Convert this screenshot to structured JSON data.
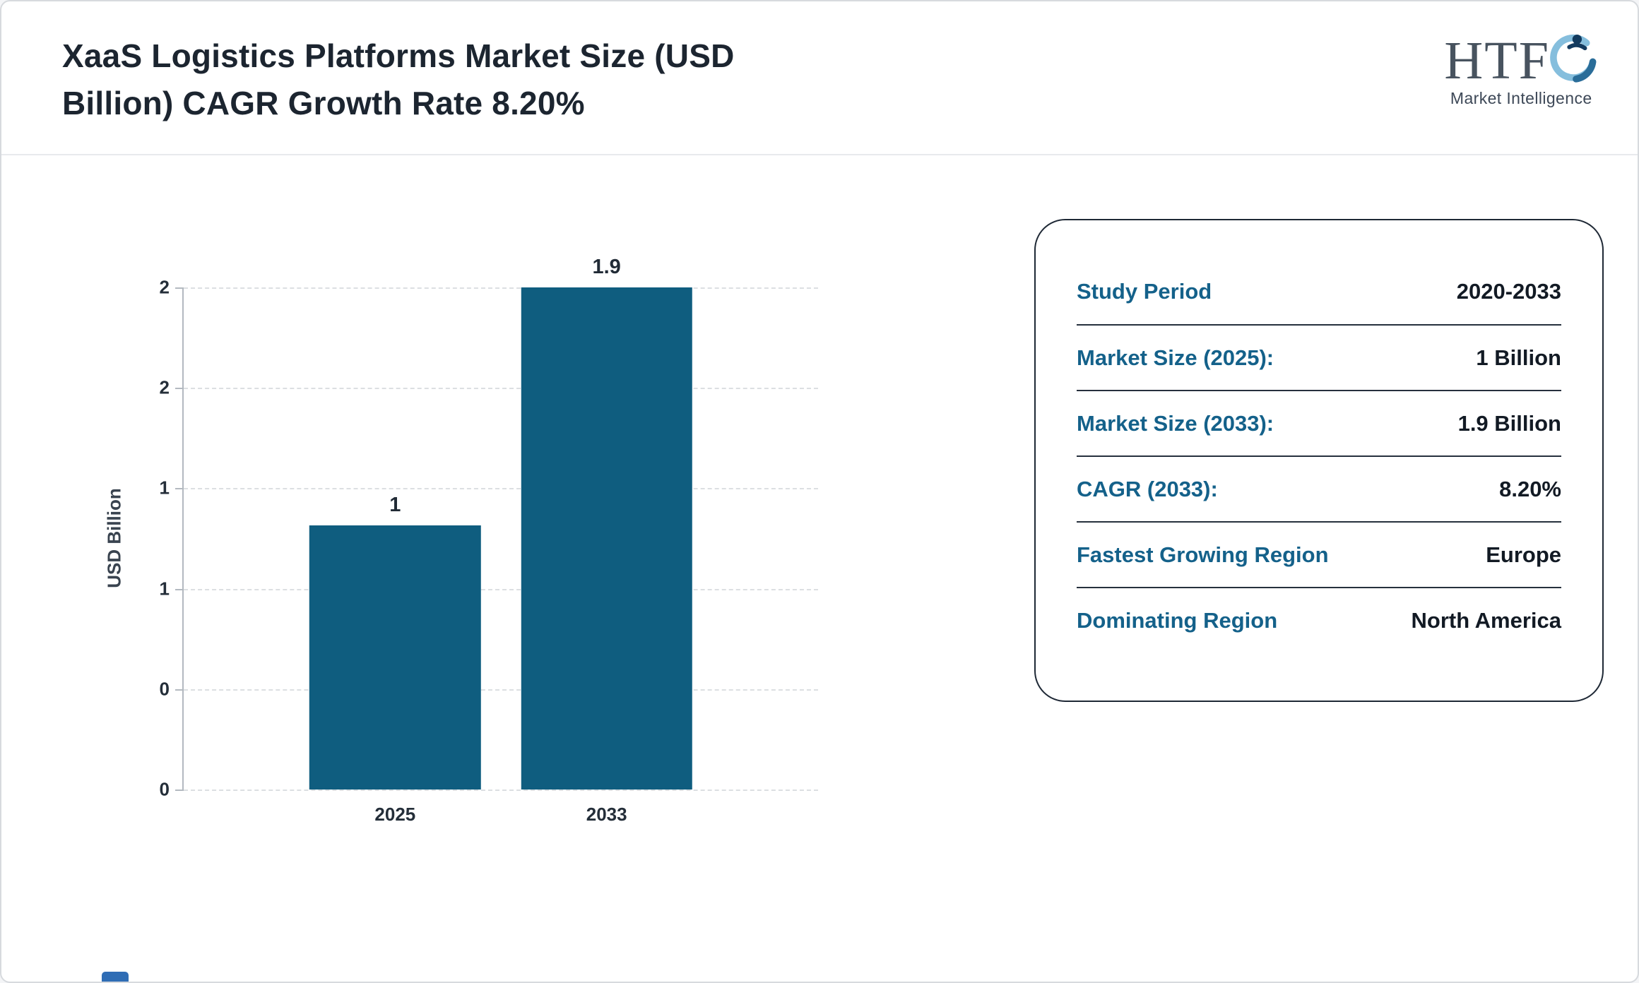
{
  "page": {
    "title_line1": "XaaS Logistics Platforms Market Size (USD",
    "title_line2": "Billion) CAGR Growth Rate 8.20%"
  },
  "logo": {
    "text": "HTF",
    "subtext": "Market Intelligence"
  },
  "chart_data": {
    "type": "bar",
    "title": "XaaS Logistics Platforms Market Size (USD Billion) CAGR Growth Rate 8.20%",
    "categories": [
      "2025",
      "2033"
    ],
    "values": [
      1,
      1.9
    ],
    "value_labels": [
      "1",
      "1.9"
    ],
    "xlabel": "",
    "ylabel": "USD Billion",
    "ylim": [
      0,
      1.9
    ],
    "y_tick_labels_top_to_bottom": [
      "2",
      "2",
      "1",
      "1",
      "0",
      "0"
    ],
    "grid": "dashed-horizontal",
    "legend": "none",
    "bar_color": "#0f5d7f"
  },
  "info_card": {
    "rows": [
      {
        "label": "Study Period",
        "value": "2020-2033"
      },
      {
        "label": "Market Size (2025):",
        "value": "1 Billion"
      },
      {
        "label": "Market Size (2033):",
        "value": "1.9 Billion"
      },
      {
        "label": "CAGR (2033):",
        "value": "8.20%"
      },
      {
        "label": "Fastest Growing Region",
        "value": "Europe"
      },
      {
        "label": "Dominating Region",
        "value": "North America"
      }
    ],
    "label_color": "#14618a",
    "value_color": "#121a24"
  }
}
